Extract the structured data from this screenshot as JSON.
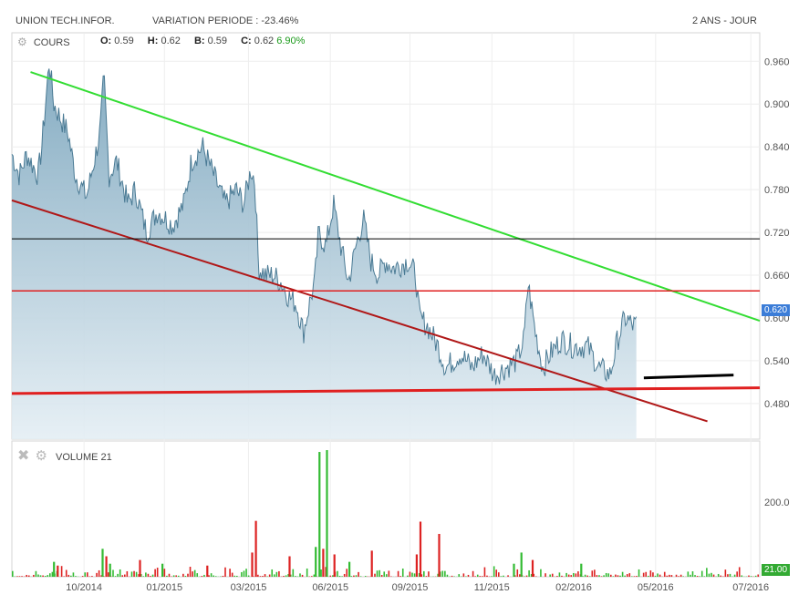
{
  "header": {
    "ticker": "UNION TECH.INFOR.",
    "variation": "VARIATION PERIODE : -23.46%",
    "period": "2 ANS - JOUR"
  },
  "price_panel": {
    "label": "COURS",
    "open_key": "O:",
    "open": "0.59",
    "high_key": "H:",
    "high": "0.62",
    "low_key": "B:",
    "low": "0.59",
    "close_key": "C:",
    "close": "0.62",
    "change": "6.90%",
    "current_badge": "0.620",
    "gear_icon": "gear-icon"
  },
  "volume_panel": {
    "label": "VOLUME",
    "value": "21",
    "current_badge": "21.00",
    "close_icon": "close-x-icon",
    "gear_icon": "gear-icon"
  },
  "colors": {
    "price_line": "#4a7a94",
    "area_top": "#7fa8bf",
    "area_bottom": "#e4eef4",
    "green_trend": "#33dd33",
    "dark_red_trend": "#b01818",
    "red_line": "#e02020",
    "black_line": "#000000",
    "vol_up": "#33bb33",
    "vol_down": "#dd2222",
    "badge_bg": "#3b7dd8",
    "badge_green": "#33aa33"
  },
  "chart_data": [
    {
      "type": "area",
      "title": "UNION TECH.INFOR.",
      "ylim": [
        0.43,
        1.0
      ],
      "y_ticks": [
        "0.960",
        "0.900",
        "0.840",
        "0.780",
        "0.720",
        "0.660",
        "0.600",
        "0.540",
        "0.480"
      ],
      "x_ticks": [
        "10/2014",
        "01/2015",
        "03/2015",
        "06/2015",
        "09/2015",
        "11/2015",
        "02/2016",
        "05/2016",
        "07/2016"
      ],
      "grid": true,
      "last_value": 0.62,
      "anchors": [
        {
          "x": 0.0,
          "y": 0.83
        },
        {
          "x": 0.01,
          "y": 0.8
        },
        {
          "x": 0.02,
          "y": 0.83
        },
        {
          "x": 0.035,
          "y": 0.8
        },
        {
          "x": 0.04,
          "y": 0.84
        },
        {
          "x": 0.045,
          "y": 0.9
        },
        {
          "x": 0.05,
          "y": 0.96
        },
        {
          "x": 0.056,
          "y": 0.9
        },
        {
          "x": 0.065,
          "y": 0.88
        },
        {
          "x": 0.075,
          "y": 0.86
        },
        {
          "x": 0.085,
          "y": 0.8
        },
        {
          "x": 0.1,
          "y": 0.77
        },
        {
          "x": 0.11,
          "y": 0.82
        },
        {
          "x": 0.118,
          "y": 0.86
        },
        {
          "x": 0.123,
          "y": 0.94
        },
        {
          "x": 0.13,
          "y": 0.8
        },
        {
          "x": 0.14,
          "y": 0.82
        },
        {
          "x": 0.155,
          "y": 0.76
        },
        {
          "x": 0.165,
          "y": 0.78
        },
        {
          "x": 0.18,
          "y": 0.72
        },
        {
          "x": 0.195,
          "y": 0.75
        },
        {
          "x": 0.215,
          "y": 0.73
        },
        {
          "x": 0.23,
          "y": 0.76
        },
        {
          "x": 0.24,
          "y": 0.82
        },
        {
          "x": 0.255,
          "y": 0.84
        },
        {
          "x": 0.27,
          "y": 0.8
        },
        {
          "x": 0.285,
          "y": 0.76
        },
        {
          "x": 0.3,
          "y": 0.78
        },
        {
          "x": 0.31,
          "y": 0.76
        },
        {
          "x": 0.32,
          "y": 0.81
        },
        {
          "x": 0.325,
          "y": 0.79
        },
        {
          "x": 0.33,
          "y": 0.67
        },
        {
          "x": 0.34,
          "y": 0.66
        },
        {
          "x": 0.35,
          "y": 0.66
        },
        {
          "x": 0.36,
          "y": 0.65
        },
        {
          "x": 0.37,
          "y": 0.63
        },
        {
          "x": 0.38,
          "y": 0.62
        },
        {
          "x": 0.39,
          "y": 0.58
        },
        {
          "x": 0.4,
          "y": 0.63
        },
        {
          "x": 0.405,
          "y": 0.65
        },
        {
          "x": 0.41,
          "y": 0.72
        },
        {
          "x": 0.42,
          "y": 0.7
        },
        {
          "x": 0.43,
          "y": 0.76
        },
        {
          "x": 0.44,
          "y": 0.7
        },
        {
          "x": 0.45,
          "y": 0.65
        },
        {
          "x": 0.46,
          "y": 0.7
        },
        {
          "x": 0.47,
          "y": 0.74
        },
        {
          "x": 0.48,
          "y": 0.68
        },
        {
          "x": 0.49,
          "y": 0.66
        },
        {
          "x": 0.5,
          "y": 0.68
        },
        {
          "x": 0.51,
          "y": 0.67
        },
        {
          "x": 0.53,
          "y": 0.68
        },
        {
          "x": 0.54,
          "y": 0.66
        },
        {
          "x": 0.545,
          "y": 0.6
        },
        {
          "x": 0.555,
          "y": 0.59
        },
        {
          "x": 0.57,
          "y": 0.56
        },
        {
          "x": 0.58,
          "y": 0.53
        },
        {
          "x": 0.6,
          "y": 0.55
        },
        {
          "x": 0.615,
          "y": 0.53
        },
        {
          "x": 0.63,
          "y": 0.55
        },
        {
          "x": 0.645,
          "y": 0.52
        },
        {
          "x": 0.66,
          "y": 0.53
        },
        {
          "x": 0.675,
          "y": 0.54
        },
        {
          "x": 0.685,
          "y": 0.57
        },
        {
          "x": 0.69,
          "y": 0.65
        },
        {
          "x": 0.7,
          "y": 0.58
        },
        {
          "x": 0.71,
          "y": 0.53
        },
        {
          "x": 0.72,
          "y": 0.55
        },
        {
          "x": 0.735,
          "y": 0.57
        },
        {
          "x": 0.75,
          "y": 0.56
        },
        {
          "x": 0.77,
          "y": 0.56
        },
        {
          "x": 0.785,
          "y": 0.53
        },
        {
          "x": 0.8,
          "y": 0.52
        },
        {
          "x": 0.81,
          "y": 0.57
        },
        {
          "x": 0.82,
          "y": 0.6
        },
        {
          "x": 0.83,
          "y": 0.59
        },
        {
          "x": 0.835,
          "y": 0.59
        }
      ]
    },
    {
      "type": "bar",
      "title": "VOLUME",
      "y_ticks": [
        "200.0"
      ],
      "ylim": [
        0,
        340
      ],
      "last_value": 21,
      "spikes": [
        {
          "x": 0.055,
          "value": 40,
          "dir": "up"
        },
        {
          "x": 0.06,
          "value": 30,
          "dir": "down"
        },
        {
          "x": 0.12,
          "value": 75,
          "dir": "up"
        },
        {
          "x": 0.125,
          "value": 55,
          "dir": "down"
        },
        {
          "x": 0.13,
          "value": 35,
          "dir": "up"
        },
        {
          "x": 0.17,
          "value": 45,
          "dir": "down"
        },
        {
          "x": 0.2,
          "value": 35,
          "dir": "up"
        },
        {
          "x": 0.26,
          "value": 30,
          "dir": "down"
        },
        {
          "x": 0.32,
          "value": 65,
          "dir": "down"
        },
        {
          "x": 0.325,
          "value": 150,
          "dir": "down"
        },
        {
          "x": 0.37,
          "value": 55,
          "dir": "down"
        },
        {
          "x": 0.405,
          "value": 80,
          "dir": "up"
        },
        {
          "x": 0.41,
          "value": 335,
          "dir": "up"
        },
        {
          "x": 0.415,
          "value": 75,
          "dir": "down"
        },
        {
          "x": 0.42,
          "value": 340,
          "dir": "up"
        },
        {
          "x": 0.43,
          "value": 60,
          "dir": "down"
        },
        {
          "x": 0.45,
          "value": 40,
          "dir": "up"
        },
        {
          "x": 0.48,
          "value": 70,
          "dir": "down"
        },
        {
          "x": 0.54,
          "value": 60,
          "dir": "down"
        },
        {
          "x": 0.545,
          "value": 148,
          "dir": "down"
        },
        {
          "x": 0.57,
          "value": 115,
          "dir": "down"
        },
        {
          "x": 0.67,
          "value": 35,
          "dir": "up"
        },
        {
          "x": 0.68,
          "value": 65,
          "dir": "up"
        },
        {
          "x": 0.695,
          "value": 45,
          "dir": "down"
        },
        {
          "x": 0.76,
          "value": 35,
          "dir": "up"
        }
      ]
    }
  ]
}
